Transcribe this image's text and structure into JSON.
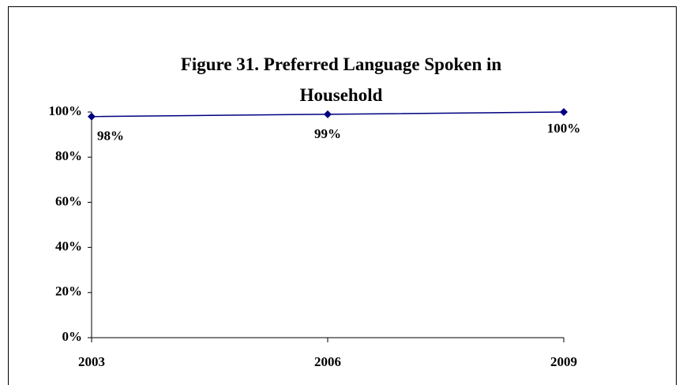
{
  "chart_data": {
    "type": "line",
    "title": "Figure 31. Preferred Language Spoken in Household",
    "categories": [
      "2003",
      "2006",
      "2009"
    ],
    "series": [
      {
        "color": "#000080",
        "values": [
          98,
          99,
          100
        ],
        "value_labels": [
          "98%",
          "99%",
          "100%"
        ]
      }
    ],
    "ylim": [
      0,
      100
    ],
    "yticks": [
      {
        "value": 0,
        "label": "0%"
      },
      {
        "value": 20,
        "label": "20%"
      },
      {
        "value": 40,
        "label": "40%"
      },
      {
        "value": 60,
        "label": "60%"
      },
      {
        "value": 80,
        "label": "80%"
      },
      {
        "value": 100,
        "label": "100%"
      }
    ],
    "grid": false
  }
}
